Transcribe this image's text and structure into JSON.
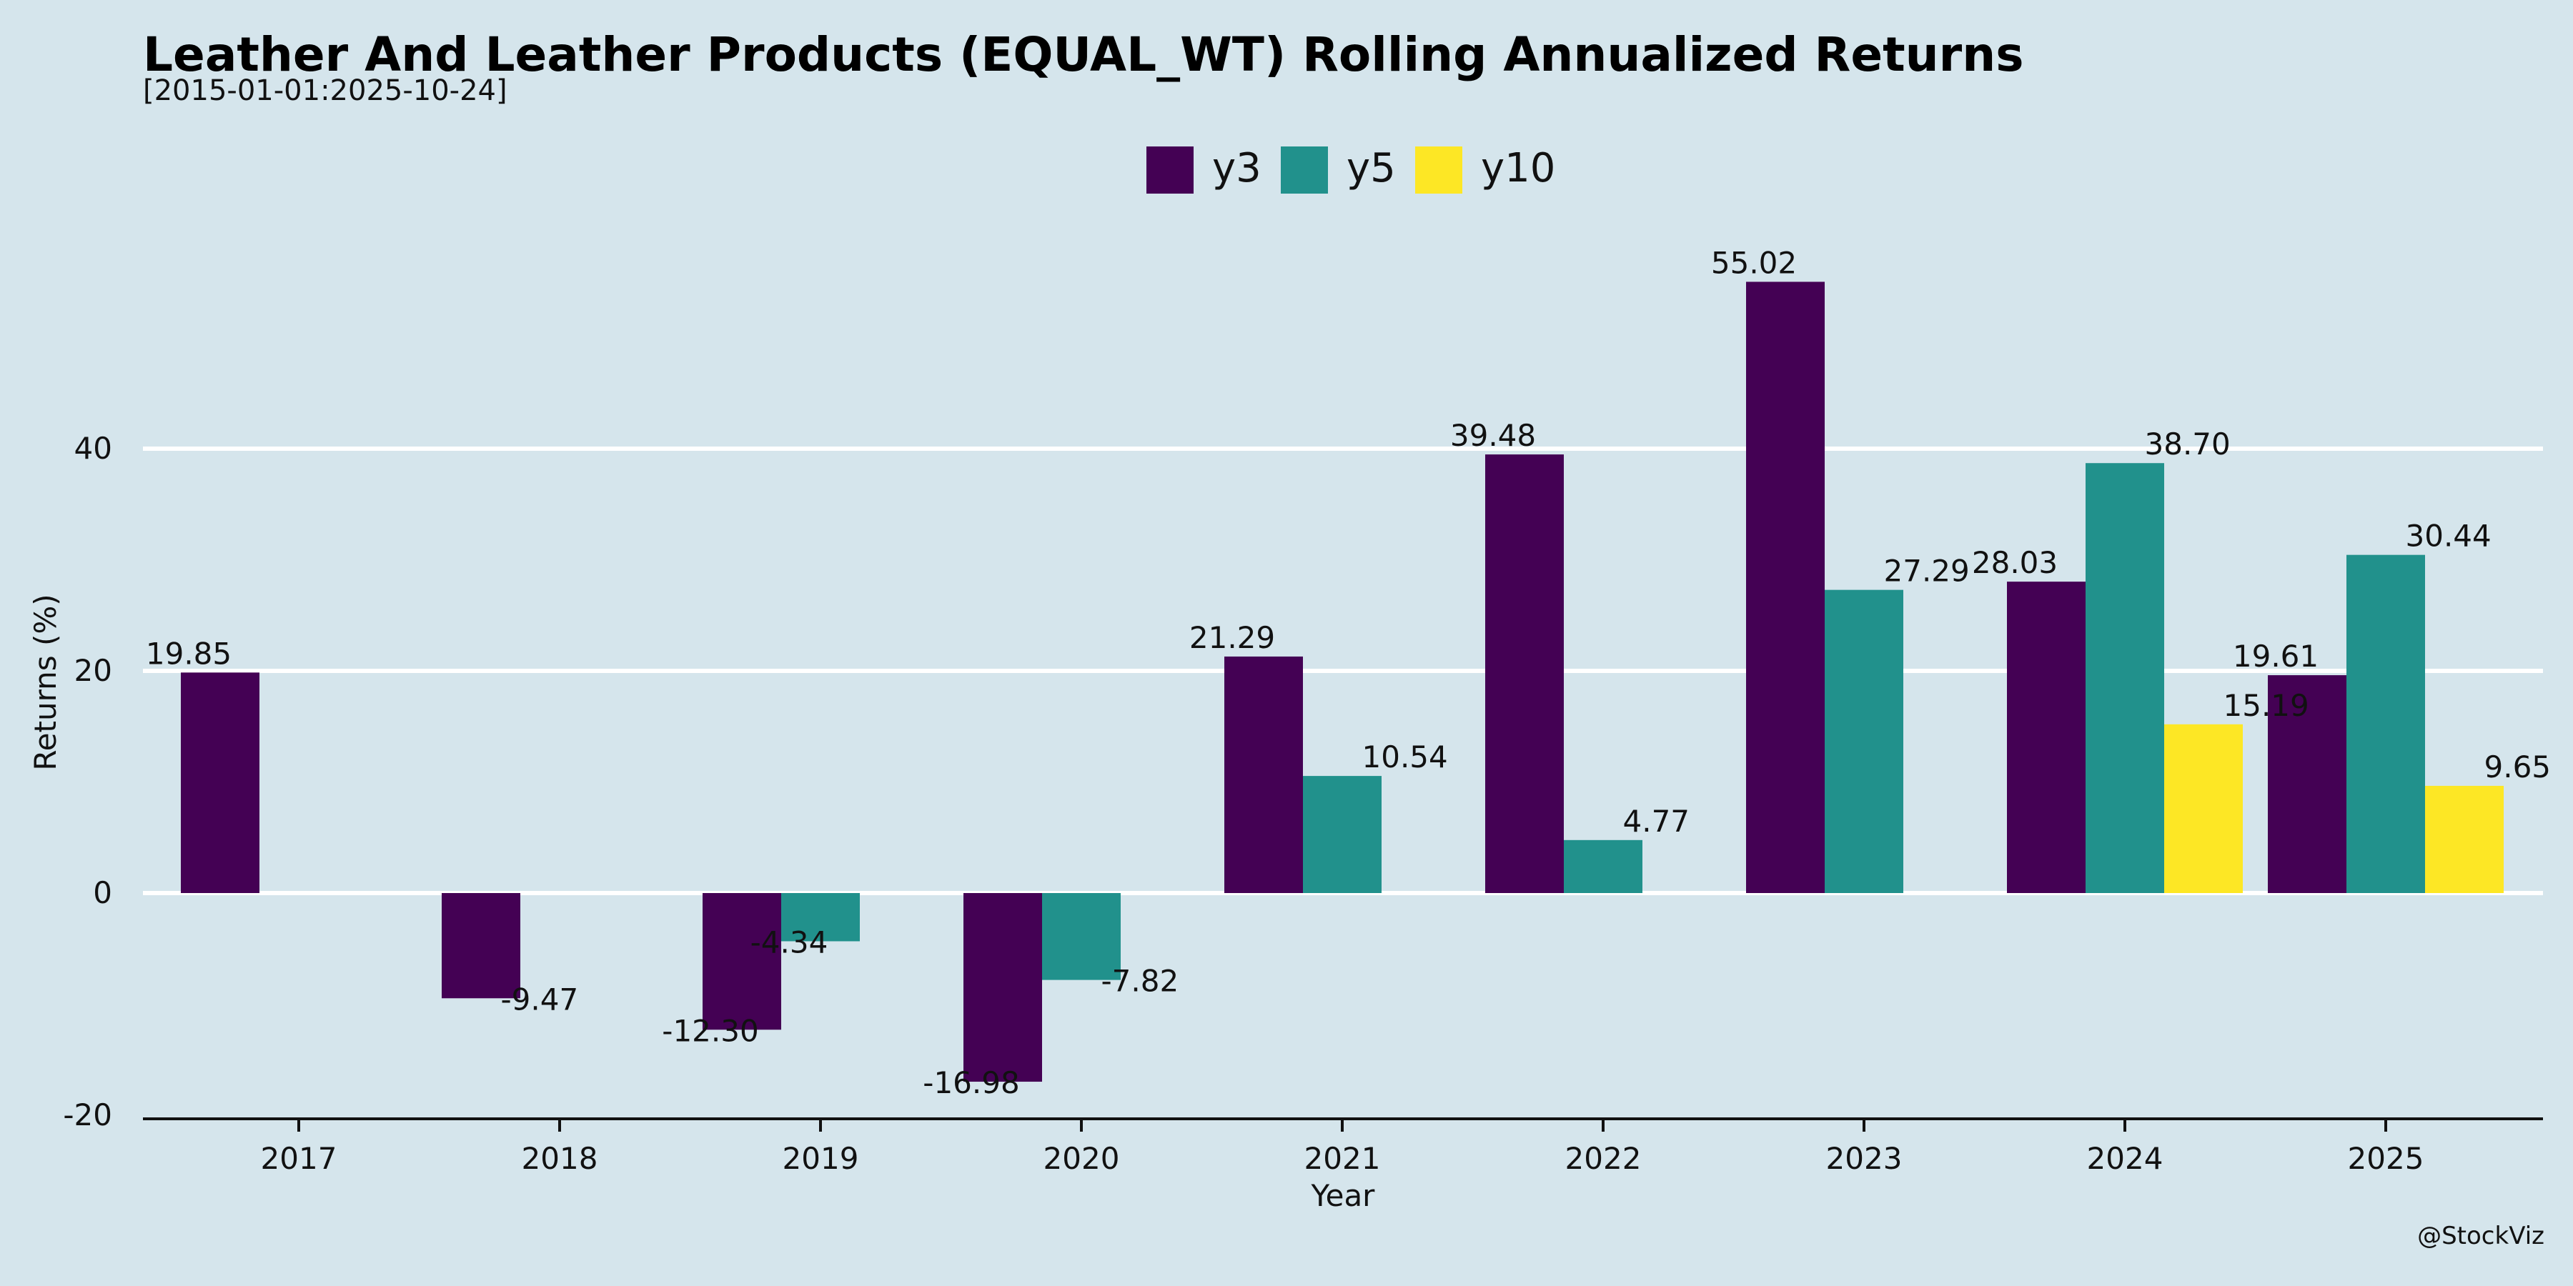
{
  "chart_data": {
    "type": "bar",
    "title": "Leather And Leather Products (EQUAL_WT) Rolling Annualized Returns",
    "subtitle": "[2015-01-01:2025-10-24]",
    "xlabel": "Year",
    "ylabel": "Returns (%)",
    "categories": [
      "2017",
      "2018",
      "2019",
      "2020",
      "2021",
      "2022",
      "2023",
      "2024",
      "2025"
    ],
    "series": [
      {
        "name": "y3",
        "color": "#440154",
        "values": [
          19.85,
          -9.47,
          -12.3,
          -16.98,
          21.29,
          39.48,
          55.02,
          28.03,
          19.61
        ]
      },
      {
        "name": "y5",
        "color": "#21918c",
        "values": [
          null,
          null,
          -4.34,
          -7.82,
          10.54,
          4.77,
          27.29,
          38.7,
          30.44
        ]
      },
      {
        "name": "y10",
        "color": "#fde725",
        "values": [
          null,
          null,
          null,
          null,
          null,
          null,
          null,
          15.19,
          9.65
        ]
      }
    ],
    "ylim": [
      -20,
      62
    ],
    "yticks": [
      -20,
      0,
      20,
      40
    ],
    "grid": true,
    "legend_position": "top-center"
  },
  "credit": "@StockViz"
}
